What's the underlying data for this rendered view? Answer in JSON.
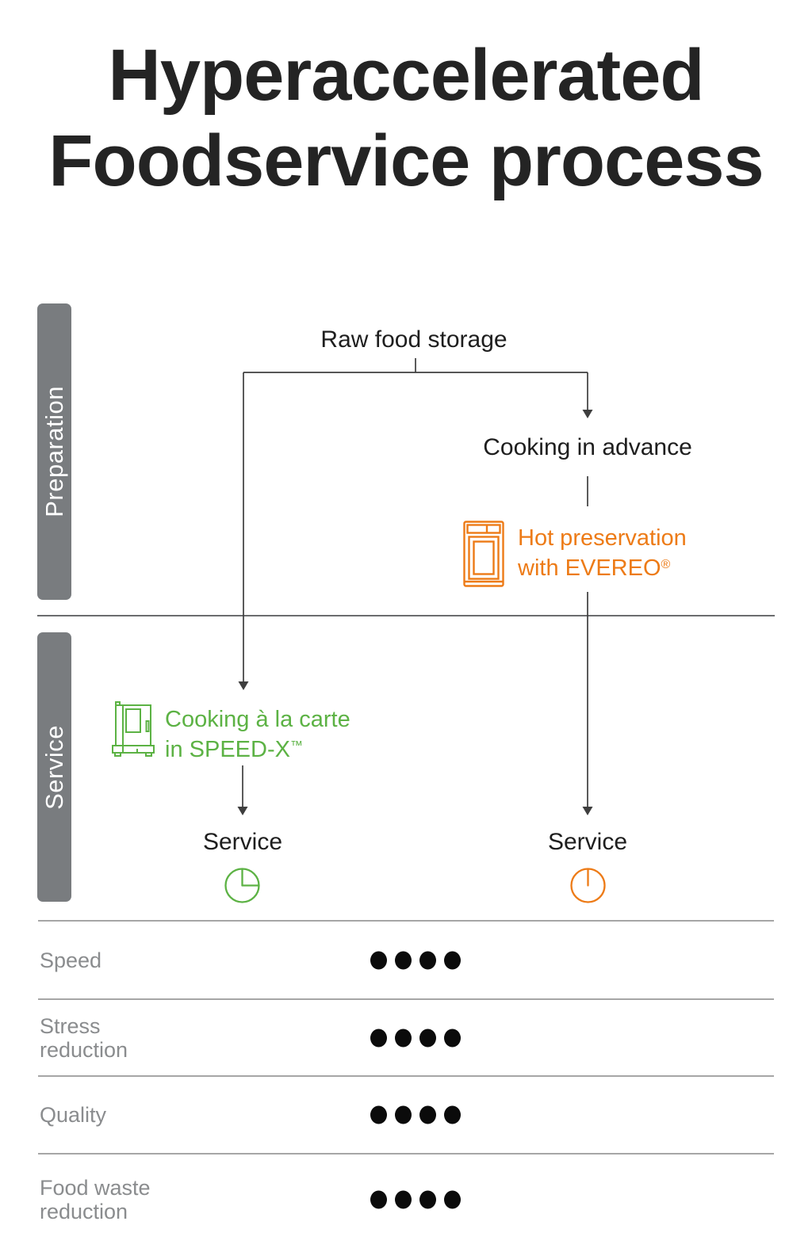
{
  "title": {
    "line1": "Hyperaccelerated",
    "line2": "Foodservice process"
  },
  "phases": {
    "preparation": "Preparation",
    "service": "Service"
  },
  "flow": {
    "root_label": "Raw food storage",
    "right_step1_label": "Cooking in advance",
    "right_step2_line1": "Hot preservation",
    "right_step2_line2": "with EVEREO",
    "right_step2_mark": "®",
    "left_step_line1": "Cooking à la carte",
    "left_step_line2": "in SPEED-X",
    "left_step_mark": "™",
    "left_end_label": "Service",
    "right_end_label": "Service"
  },
  "icons": {
    "right_equipment": "evereo-hot-holding-oven-icon",
    "left_equipment": "speedx-oven-icon",
    "left_time": "clock-quarter-icon",
    "right_time": "clock-zero-icon"
  },
  "metrics": {
    "rows": [
      {
        "label": "Speed",
        "dots": 4,
        "max_dots": 4
      },
      {
        "label": "Stress\nreduction",
        "dots": 4,
        "max_dots": 4
      },
      {
        "label": "Quality",
        "dots": 4,
        "max_dots": 4
      },
      {
        "label": "Food waste\nreduction",
        "dots": 4,
        "max_dots": 4
      }
    ]
  },
  "colors": {
    "orange": "#ED7B17",
    "green": "#5CB244",
    "phase_bar_gray": "#797C7F",
    "flow_line": "#3E3E3E",
    "text_dark": "#1E1E1E",
    "label_gray": "#8A8C8E"
  }
}
